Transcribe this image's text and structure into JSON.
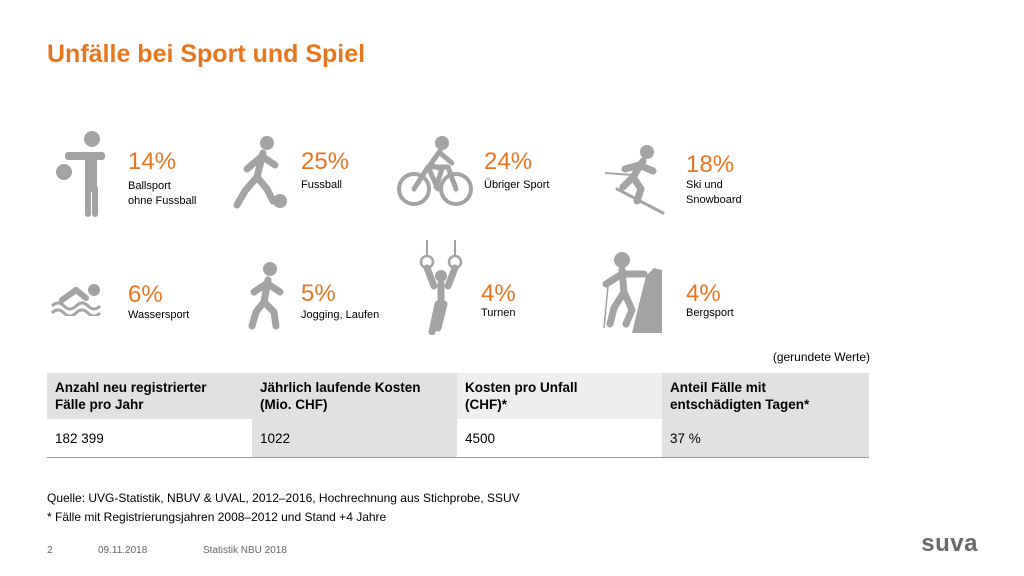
{
  "title": "Unfälle bei Sport und Spiel",
  "stats": [
    {
      "icon": "ballsport-icon",
      "pct": "14%",
      "label": "Ballsport\nohne Fussball"
    },
    {
      "icon": "fussball-icon",
      "pct": "25%",
      "label": "Fussball"
    },
    {
      "icon": "cycling-icon",
      "pct": "24%",
      "label": "Übriger Sport"
    },
    {
      "icon": "skiing-icon",
      "pct": "18%",
      "label": "Ski und\nSnowboard"
    },
    {
      "icon": "swimming-icon",
      "pct": "6%",
      "label": "Wassersport"
    },
    {
      "icon": "running-icon",
      "pct": "5%",
      "label": "Jogging, Laufen"
    },
    {
      "icon": "gymnastics-rings-icon",
      "pct": "4%",
      "label": "Turnen"
    },
    {
      "icon": "climbing-icon",
      "pct": "4%",
      "label": "Bergsport"
    }
  ],
  "note": "(gerundete Werte)",
  "table": {
    "headers": [
      "Anzahl neu registrierter\nFälle pro Jahr",
      "Jährlich laufende Kosten\n(Mio. CHF)",
      "Kosten pro Unfall\n(CHF)*",
      "Anteil Fälle mit\nentschädigten Tagen*"
    ],
    "values": [
      "182 399",
      "1022",
      "4500",
      "37 %"
    ]
  },
  "source": {
    "line1": "Quelle: UVG-Statistik, NBUV & UVAL, 2012–2016, Hochrechnung aus Stichprobe, SSUV",
    "line2": "* Fälle mit Registrierungsjahren 2008–2012 und Stand +4 Jahre"
  },
  "footer": {
    "page": "2",
    "date": "09.11.2018",
    "doc": "Statistik NBU 2018"
  },
  "logo": "suva",
  "colors": {
    "accent": "#e8761f",
    "icon_gray": "#a3a3a3",
    "header_dark": "#e1e1e1",
    "header_light": "#eeeeee"
  }
}
